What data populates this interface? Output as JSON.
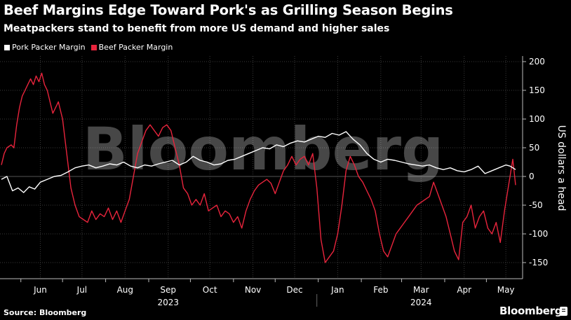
{
  "header": {
    "title": "Beef Margins Edge Toward Pork's as Grilling Season Begins",
    "subtitle": "Meatpackers stand to benefit from more US demand and higher sales"
  },
  "footer": {
    "source": "Source: Bloomberg",
    "brand": "Bloomberg",
    "watermark": "Bloomberg"
  },
  "colors": {
    "background": "#000000",
    "pork": "#ffffff",
    "beef": "#e8243c",
    "grid": "#3a3a3a"
  },
  "chart_data": {
    "type": "line",
    "title": "Beef Margins Edge Toward Pork's as Grilling Season Begins",
    "subtitle": "Meatpackers stand to benefit from more US demand and higher sales",
    "ylabel": "US dollars a head",
    "ylim": [
      -180,
      210
    ],
    "y_ticks": [
      200,
      150,
      100,
      50,
      0,
      -50,
      -100,
      -150
    ],
    "y_tick_labels": [
      "200",
      "150",
      "100",
      "50",
      "0",
      "-50",
      "-100",
      "-150"
    ],
    "xlim": [
      "2023-05-18",
      "2024-05-22"
    ],
    "x_ticks": [
      {
        "date": "2023-06-15",
        "label": "Jun"
      },
      {
        "date": "2023-07-15",
        "label": "Jul"
      },
      {
        "date": "2023-08-15",
        "label": "Aug"
      },
      {
        "date": "2023-09-15",
        "label": "Sep"
      },
      {
        "date": "2023-10-15",
        "label": "Oct"
      },
      {
        "date": "2023-11-15",
        "label": "Nov"
      },
      {
        "date": "2023-12-15",
        "label": "Dec"
      },
      {
        "date": "2024-01-15",
        "label": "Jan"
      },
      {
        "date": "2024-02-15",
        "label": "Feb"
      },
      {
        "date": "2024-03-15",
        "label": "Mar"
      },
      {
        "date": "2024-04-15",
        "label": "Apr"
      },
      {
        "date": "2024-05-15",
        "label": "May"
      }
    ],
    "year_labels": [
      {
        "date": "2023-09-15",
        "label": "2023"
      },
      {
        "date": "2024-03-15",
        "label": "2024"
      }
    ],
    "year_divider": "2023-12-31",
    "grid": true,
    "legend_position": "top-left",
    "series": [
      {
        "name": "Pork Packer Margin",
        "color": "#ffffff",
        "points": [
          [
            "2023-05-18",
            -5
          ],
          [
            "2023-05-22",
            0
          ],
          [
            "2023-05-26",
            -25
          ],
          [
            "2023-05-30",
            -20
          ],
          [
            "2023-06-03",
            -28
          ],
          [
            "2023-06-07",
            -18
          ],
          [
            "2023-06-11",
            -22
          ],
          [
            "2023-06-15",
            -10
          ],
          [
            "2023-06-20",
            -5
          ],
          [
            "2023-06-25",
            0
          ],
          [
            "2023-06-30",
            2
          ],
          [
            "2023-07-05",
            8
          ],
          [
            "2023-07-10",
            15
          ],
          [
            "2023-07-15",
            18
          ],
          [
            "2023-07-20",
            20
          ],
          [
            "2023-07-25",
            15
          ],
          [
            "2023-07-30",
            18
          ],
          [
            "2023-08-04",
            22
          ],
          [
            "2023-08-09",
            20
          ],
          [
            "2023-08-14",
            25
          ],
          [
            "2023-08-19",
            18
          ],
          [
            "2023-08-24",
            15
          ],
          [
            "2023-08-29",
            20
          ],
          [
            "2023-09-03",
            18
          ],
          [
            "2023-09-08",
            22
          ],
          [
            "2023-09-13",
            25
          ],
          [
            "2023-09-18",
            28
          ],
          [
            "2023-09-23",
            20
          ],
          [
            "2023-09-28",
            25
          ],
          [
            "2023-10-03",
            35
          ],
          [
            "2023-10-08",
            28
          ],
          [
            "2023-10-13",
            25
          ],
          [
            "2023-10-18",
            20
          ],
          [
            "2023-10-23",
            22
          ],
          [
            "2023-10-28",
            28
          ],
          [
            "2023-11-02",
            30
          ],
          [
            "2023-11-07",
            35
          ],
          [
            "2023-11-12",
            40
          ],
          [
            "2023-11-17",
            45
          ],
          [
            "2023-11-22",
            50
          ],
          [
            "2023-11-27",
            48
          ],
          [
            "2023-12-02",
            55
          ],
          [
            "2023-12-07",
            52
          ],
          [
            "2023-12-12",
            58
          ],
          [
            "2023-12-17",
            62
          ],
          [
            "2023-12-22",
            60
          ],
          [
            "2023-12-27",
            65
          ],
          [
            "2024-01-01",
            70
          ],
          [
            "2024-01-06",
            68
          ],
          [
            "2024-01-11",
            75
          ],
          [
            "2024-01-16",
            72
          ],
          [
            "2024-01-21",
            78
          ],
          [
            "2024-01-26",
            65
          ],
          [
            "2024-01-31",
            55
          ],
          [
            "2024-02-05",
            40
          ],
          [
            "2024-02-10",
            30
          ],
          [
            "2024-02-15",
            25
          ],
          [
            "2024-02-20",
            30
          ],
          [
            "2024-02-25",
            28
          ],
          [
            "2024-03-01",
            25
          ],
          [
            "2024-03-06",
            22
          ],
          [
            "2024-03-11",
            20
          ],
          [
            "2024-03-16",
            18
          ],
          [
            "2024-03-21",
            20
          ],
          [
            "2024-03-26",
            15
          ],
          [
            "2024-03-31",
            12
          ],
          [
            "2024-04-05",
            15
          ],
          [
            "2024-04-10",
            10
          ],
          [
            "2024-04-15",
            8
          ],
          [
            "2024-04-20",
            12
          ],
          [
            "2024-04-25",
            18
          ],
          [
            "2024-04-30",
            5
          ],
          [
            "2024-05-05",
            10
          ],
          [
            "2024-05-10",
            15
          ],
          [
            "2024-05-15",
            20
          ],
          [
            "2024-05-18",
            18
          ],
          [
            "2024-05-22",
            12
          ]
        ]
      },
      {
        "name": "Beef Packer Margin",
        "color": "#e8243c",
        "points": [
          [
            "2023-05-18",
            20
          ],
          [
            "2023-05-20",
            40
          ],
          [
            "2023-05-22",
            50
          ],
          [
            "2023-05-25",
            55
          ],
          [
            "2023-05-27",
            50
          ],
          [
            "2023-05-29",
            90
          ],
          [
            "2023-05-31",
            120
          ],
          [
            "2023-06-02",
            140
          ],
          [
            "2023-06-04",
            150
          ],
          [
            "2023-06-06",
            160
          ],
          [
            "2023-06-08",
            170
          ],
          [
            "2023-06-10",
            160
          ],
          [
            "2023-06-12",
            175
          ],
          [
            "2023-06-14",
            165
          ],
          [
            "2023-06-16",
            180
          ],
          [
            "2023-06-18",
            160
          ],
          [
            "2023-06-20",
            150
          ],
          [
            "2023-06-22",
            130
          ],
          [
            "2023-06-24",
            110
          ],
          [
            "2023-06-26",
            120
          ],
          [
            "2023-06-28",
            130
          ],
          [
            "2023-07-01",
            100
          ],
          [
            "2023-07-04",
            40
          ],
          [
            "2023-07-07",
            -20
          ],
          [
            "2023-07-10",
            -50
          ],
          [
            "2023-07-13",
            -70
          ],
          [
            "2023-07-16",
            -75
          ],
          [
            "2023-07-19",
            -80
          ],
          [
            "2023-07-22",
            -60
          ],
          [
            "2023-07-25",
            -75
          ],
          [
            "2023-07-28",
            -65
          ],
          [
            "2023-07-31",
            -70
          ],
          [
            "2023-08-03",
            -55
          ],
          [
            "2023-08-06",
            -75
          ],
          [
            "2023-08-09",
            -60
          ],
          [
            "2023-08-12",
            -80
          ],
          [
            "2023-08-15",
            -60
          ],
          [
            "2023-08-18",
            -40
          ],
          [
            "2023-08-21",
            0
          ],
          [
            "2023-08-24",
            40
          ],
          [
            "2023-08-27",
            60
          ],
          [
            "2023-08-30",
            80
          ],
          [
            "2023-09-02",
            90
          ],
          [
            "2023-09-05",
            80
          ],
          [
            "2023-09-08",
            70
          ],
          [
            "2023-09-11",
            85
          ],
          [
            "2023-09-14",
            90
          ],
          [
            "2023-09-17",
            80
          ],
          [
            "2023-09-20",
            50
          ],
          [
            "2023-09-23",
            20
          ],
          [
            "2023-09-26",
            -20
          ],
          [
            "2023-09-29",
            -30
          ],
          [
            "2023-10-02",
            -50
          ],
          [
            "2023-10-05",
            -40
          ],
          [
            "2023-10-08",
            -50
          ],
          [
            "2023-10-11",
            -30
          ],
          [
            "2023-10-14",
            -60
          ],
          [
            "2023-10-17",
            -55
          ],
          [
            "2023-10-20",
            -50
          ],
          [
            "2023-10-23",
            -70
          ],
          [
            "2023-10-26",
            -60
          ],
          [
            "2023-10-29",
            -65
          ],
          [
            "2023-11-01",
            -80
          ],
          [
            "2023-11-04",
            -70
          ],
          [
            "2023-11-07",
            -90
          ],
          [
            "2023-11-10",
            -60
          ],
          [
            "2023-11-13",
            -40
          ],
          [
            "2023-11-16",
            -25
          ],
          [
            "2023-11-19",
            -15
          ],
          [
            "2023-11-22",
            -10
          ],
          [
            "2023-11-25",
            -5
          ],
          [
            "2023-11-28",
            -12
          ],
          [
            "2023-12-01",
            -30
          ],
          [
            "2023-12-04",
            -10
          ],
          [
            "2023-12-07",
            10
          ],
          [
            "2023-12-10",
            20
          ],
          [
            "2023-12-13",
            35
          ],
          [
            "2023-12-16",
            20
          ],
          [
            "2023-12-19",
            30
          ],
          [
            "2023-12-22",
            35
          ],
          [
            "2023-12-25",
            20
          ],
          [
            "2023-12-28",
            40
          ],
          [
            "2023-12-31",
            -20
          ],
          [
            "2024-01-03",
            -110
          ],
          [
            "2024-01-06",
            -150
          ],
          [
            "2024-01-09",
            -140
          ],
          [
            "2024-01-12",
            -130
          ],
          [
            "2024-01-15",
            -100
          ],
          [
            "2024-01-18",
            -50
          ],
          [
            "2024-01-21",
            10
          ],
          [
            "2024-01-24",
            35
          ],
          [
            "2024-01-27",
            20
          ],
          [
            "2024-01-30",
            0
          ],
          [
            "2024-02-02",
            -10
          ],
          [
            "2024-02-05",
            -25
          ],
          [
            "2024-02-08",
            -40
          ],
          [
            "2024-02-11",
            -60
          ],
          [
            "2024-02-14",
            -100
          ],
          [
            "2024-02-17",
            -130
          ],
          [
            "2024-02-20",
            -140
          ],
          [
            "2024-02-23",
            -120
          ],
          [
            "2024-02-26",
            -100
          ],
          [
            "2024-02-29",
            -90
          ],
          [
            "2024-03-03",
            -80
          ],
          [
            "2024-03-06",
            -70
          ],
          [
            "2024-03-09",
            -60
          ],
          [
            "2024-03-12",
            -50
          ],
          [
            "2024-03-15",
            -45
          ],
          [
            "2024-03-18",
            -40
          ],
          [
            "2024-03-21",
            -35
          ],
          [
            "2024-03-24",
            -10
          ],
          [
            "2024-03-27",
            -30
          ],
          [
            "2024-03-30",
            -50
          ],
          [
            "2024-04-02",
            -70
          ],
          [
            "2024-04-05",
            -100
          ],
          [
            "2024-04-08",
            -130
          ],
          [
            "2024-04-11",
            -145
          ],
          [
            "2024-04-14",
            -80
          ],
          [
            "2024-04-17",
            -70
          ],
          [
            "2024-04-20",
            -50
          ],
          [
            "2024-04-23",
            -90
          ],
          [
            "2024-04-26",
            -70
          ],
          [
            "2024-04-29",
            -60
          ],
          [
            "2024-05-02",
            -90
          ],
          [
            "2024-05-05",
            -100
          ],
          [
            "2024-05-08",
            -80
          ],
          [
            "2024-05-11",
            -115
          ],
          [
            "2024-05-14",
            -60
          ],
          [
            "2024-05-16",
            -30
          ],
          [
            "2024-05-18",
            0
          ],
          [
            "2024-05-20",
            30
          ],
          [
            "2024-05-22",
            -15
          ]
        ]
      }
    ]
  }
}
